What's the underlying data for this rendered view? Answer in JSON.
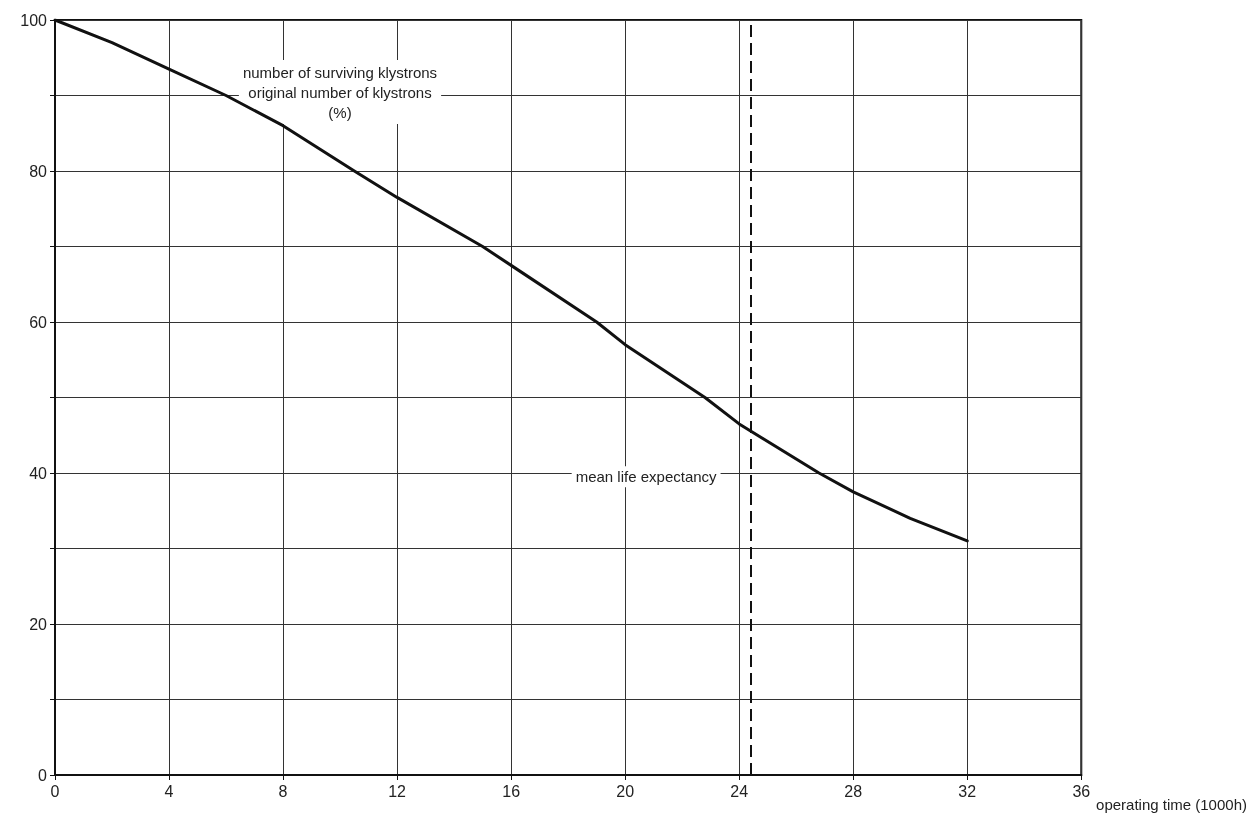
{
  "chart_data": {
    "type": "line",
    "xlabel": "operating time (1000h)",
    "ylabel": "number of surviving klystrons\noriginal number of klystrons\n(%)",
    "x": [
      0,
      2,
      4,
      6,
      8,
      10.5,
      12,
      15,
      16,
      19,
      20,
      22.8,
      24,
      26.8,
      28,
      30,
      32
    ],
    "series": [
      {
        "color": "#111111",
        "values": [
          100,
          97,
          93.5,
          90,
          86,
          80,
          76.5,
          70,
          67.5,
          60,
          57,
          50,
          46.5,
          40,
          37.5,
          34,
          31
        ]
      }
    ],
    "xlim": [
      0,
      36
    ],
    "xticks": [
      0,
      4,
      8,
      12,
      16,
      20,
      24,
      28,
      32,
      36
    ],
    "ylim": [
      0,
      100
    ],
    "yticks": [
      0,
      {
        "value": 10,
        "label": null
      },
      20,
      {
        "value": 30,
        "label": null
      },
      40,
      {
        "value": 50,
        "label": null
      },
      60,
      {
        "value": 70,
        "label": null
      },
      80,
      {
        "value": 90,
        "label": null
      },
      100
    ],
    "grid": true,
    "marker": "none",
    "line_style": "solid",
    "ref_lines": [
      {
        "axis": "x",
        "value": 24.4,
        "label": "mean life expectancy",
        "color": "#111111",
        "line_style": "dashed"
      }
    ]
  }
}
